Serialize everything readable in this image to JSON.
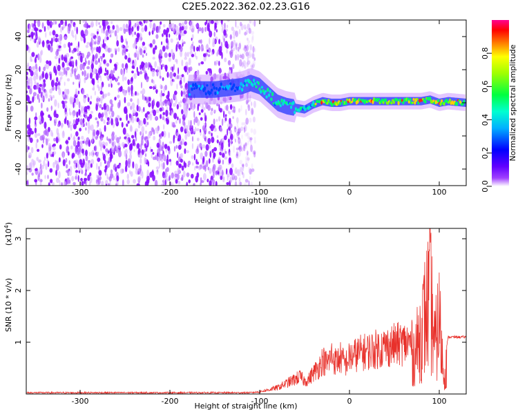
{
  "title": "C2E5.2022.362.02.23.G16",
  "colors": {
    "snr_line": "#e8312b",
    "background": "#ffffff",
    "axis": "#000000"
  },
  "chart_data": [
    {
      "type": "heatmap",
      "name": "spectrogram",
      "xlabel": "Height of straight line (km)",
      "ylabel": "Frequency (Hz)",
      "xlim": [
        -360,
        130
      ],
      "ylim": [
        -50,
        50
      ],
      "xticks": [
        "-300",
        "-200",
        "-100",
        "0",
        "100"
      ],
      "yticks": [
        "-40",
        "-20",
        "0",
        "20",
        "40"
      ],
      "colorbar": {
        "label": "Normalized spectral amplitude",
        "range": [
          0.0,
          1.0
        ],
        "ticks": [
          "0.0",
          "0.2",
          "0.4",
          "0.6",
          "0.8"
        ],
        "colors": [
          "#ffffff",
          "#7a00ff",
          "#0000ff",
          "#00e0ff",
          "#00ff40",
          "#ffff00",
          "#ff8000",
          "#ff0000",
          "#ff0080"
        ]
      },
      "noise_region_x": [
        -360,
        -115
      ],
      "ridge": {
        "x": [
          -180,
          -150,
          -120,
          -110,
          -100,
          -90,
          -80,
          -70,
          -60,
          -50,
          -40,
          -30,
          -20,
          -10,
          0,
          20,
          40,
          60,
          80,
          90,
          100,
          110,
          130
        ],
        "y": [
          8,
          8,
          10,
          12,
          10,
          5,
          0,
          -2,
          -3,
          -4,
          -1,
          1,
          0,
          0,
          1,
          1,
          1,
          1,
          1,
          2,
          0,
          1,
          0
        ]
      }
    },
    {
      "type": "line",
      "name": "snr",
      "xlabel": "Height of straight line (km)",
      "ylabel": "SNR (10 * v/v)",
      "ylabel_scale": "(x10",
      "ylabel_scale_exp": "4",
      "ylabel_scale_close": ")",
      "xlim": [
        -360,
        130
      ],
      "ylim": [
        0,
        3.2
      ],
      "xticks": [
        "-300",
        "-200",
        "-100",
        "0",
        "100"
      ],
      "yticks": [
        "1",
        "2",
        "3"
      ],
      "series": [
        {
          "x": [
            -360,
            -300,
            -200,
            -120,
            -100,
            -90,
            -80,
            -70,
            -60,
            -55,
            -50,
            -45,
            -40,
            -35,
            -30,
            -25,
            -20,
            -15,
            -10,
            -5,
            0,
            10,
            20,
            30,
            40,
            50,
            60,
            70,
            75,
            80,
            85,
            90,
            95,
            100,
            105,
            110,
            120,
            130
          ],
          "values": [
            0.02,
            0.02,
            0.02,
            0.02,
            0.05,
            0.1,
            0.15,
            0.25,
            0.35,
            0.4,
            0.3,
            0.35,
            0.5,
            0.6,
            0.8,
            0.7,
            0.9,
            0.75,
            0.85,
            0.7,
            0.85,
            0.95,
            1.0,
            1.05,
            1.1,
            1.15,
            1.18,
            1.2,
            1.5,
            2.0,
            2.6,
            3.2,
            1.5,
            2.4,
            0.6,
            1.1,
            1.1,
            1.1
          ]
        }
      ]
    }
  ]
}
